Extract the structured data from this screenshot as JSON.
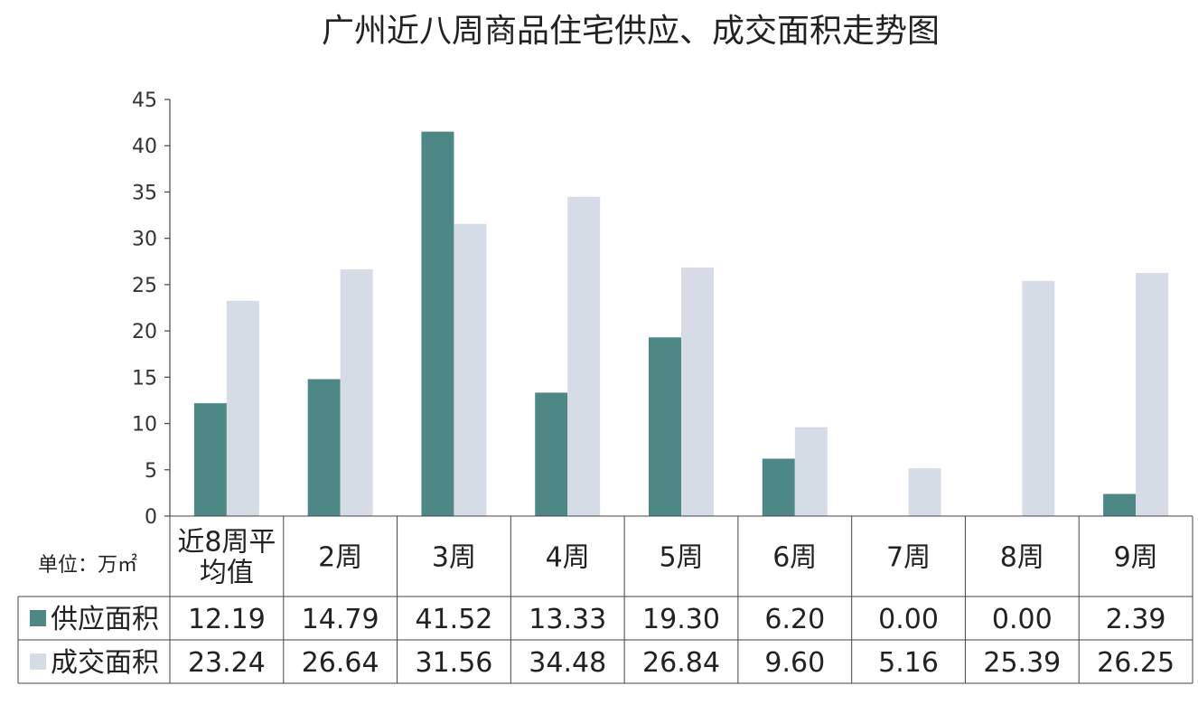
{
  "chart_data": {
    "type": "bar",
    "title": "广州近八周商品住宅供应、成交面积走势图",
    "unit_label": "单位：万㎡",
    "categories": [
      "近8周平均值",
      "2周",
      "3周",
      "4周",
      "5周",
      "6周",
      "7周",
      "8周",
      "9周"
    ],
    "category_lines": [
      [
        "近8周平",
        "均值"
      ],
      [
        "2周"
      ],
      [
        "3周"
      ],
      [
        "4周"
      ],
      [
        "5周"
      ],
      [
        "6周"
      ],
      [
        "7周"
      ],
      [
        "8周"
      ],
      [
        "9周"
      ]
    ],
    "ylim": [
      0,
      45
    ],
    "yticks": [
      0,
      5,
      10,
      15,
      20,
      25,
      30,
      35,
      40,
      45
    ],
    "grid": false,
    "legend": "table-left",
    "series": [
      {
        "name": "供应面积",
        "color": "#4e8886",
        "values": [
          12.19,
          14.79,
          41.52,
          13.33,
          19.3,
          6.2,
          0.0,
          0.0,
          2.39
        ],
        "labels": [
          "12.19",
          "14.79",
          "41.52",
          "13.33",
          "19.30",
          "6.20",
          "0.00",
          "0.00",
          "2.39"
        ]
      },
      {
        "name": "成交面积",
        "color": "#d6dce6",
        "values": [
          23.24,
          26.64,
          31.56,
          34.48,
          26.84,
          9.6,
          5.16,
          25.39,
          26.25
        ],
        "labels": [
          "23.24",
          "26.64",
          "31.56",
          "34.48",
          "26.84",
          "9.60",
          "5.16",
          "25.39",
          "26.25"
        ]
      }
    ]
  }
}
